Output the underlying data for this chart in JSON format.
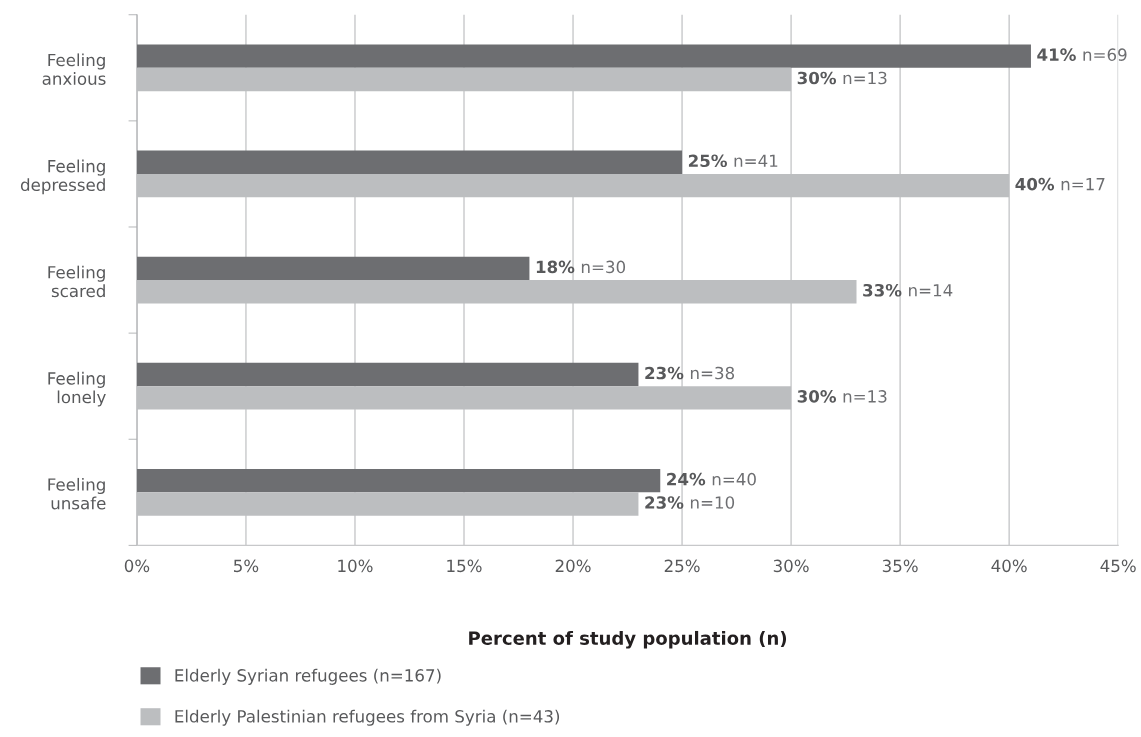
{
  "chart_data": {
    "type": "bar",
    "orientation": "horizontal",
    "categories": [
      "Feeling\nanxious",
      "Feeling\ndepressed",
      "Feeling\nscared",
      "Feeling\nlonely",
      "Feeling\nunsafe"
    ],
    "series": [
      {
        "name": "Elderly Syrian refugees (n=167)",
        "color": "#6d6e71",
        "values": [
          41,
          25,
          18,
          23,
          24
        ],
        "value_labels": [
          "41% n=69",
          "25% n=41",
          "18% n=30",
          "23% n=38",
          "24% n=40"
        ]
      },
      {
        "name": "Elderly Palestinian refugees from Syria (n=43)",
        "color": "#bcbec0",
        "values": [
          30,
          40,
          33,
          30,
          23
        ],
        "value_labels": [
          "30% n=13",
          "40% n=17",
          "33% n=14",
          "30% n=13",
          "23% n=10"
        ]
      }
    ],
    "xlabel": "Percent of study population (n)",
    "xlim": [
      0,
      45
    ],
    "xticks": [
      {
        "value": 0,
        "label": "0%"
      },
      {
        "value": 5,
        "label": "5%"
      },
      {
        "value": 10,
        "label": "10%"
      },
      {
        "value": 15,
        "label": "15%"
      },
      {
        "value": 20,
        "label": "20%"
      },
      {
        "value": 25,
        "label": "25%"
      },
      {
        "value": 30,
        "label": "30%"
      },
      {
        "value": 35,
        "label": "35%"
      },
      {
        "value": 40,
        "label": "40%"
      },
      {
        "value": 45,
        "label": "45%"
      }
    ],
    "grid": "x",
    "legend": "bottom"
  }
}
